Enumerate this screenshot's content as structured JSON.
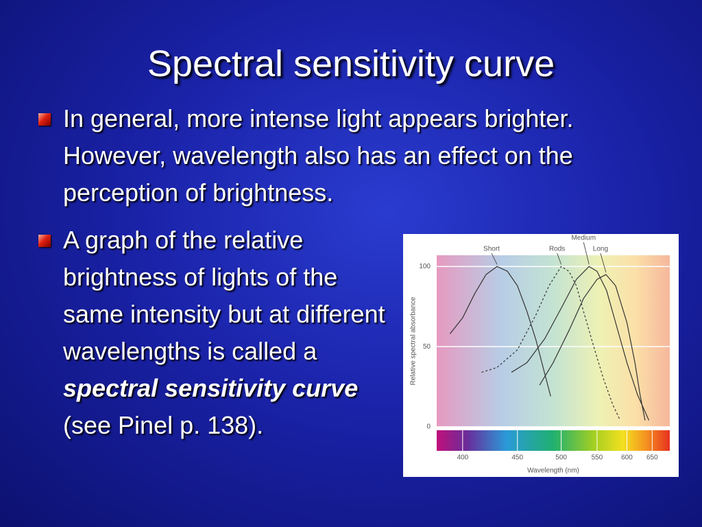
{
  "slide": {
    "title": "Spectral sensitivity curve",
    "bullets": [
      {
        "text": "In general, more intense light appears brighter.  However, wavelength also has an effect on the perception of brightness."
      },
      {
        "parts": [
          "A graph of the relative brightness of lights of the same intensity but at different wavelengths is called a ",
          "spectral sensitivity curve",
          " (see Pinel p. 138)."
        ]
      }
    ]
  },
  "chart_data": {
    "type": "line",
    "xlabel": "Wavelength (nm)",
    "ylabel": "Relative spectral absorbance",
    "xscale": "reciprocal",
    "xlim": [
      380,
      690
    ],
    "ylim": [
      0,
      107
    ],
    "xticks": [
      400,
      450,
      500,
      550,
      600,
      650
    ],
    "yticks": [
      0,
      50,
      100
    ],
    "grid": true,
    "series": [
      {
        "name": "Short",
        "color": "#333333",
        "dash": false,
        "x": [
          390,
          400,
          410,
          420,
          430,
          440,
          450,
          460,
          470,
          480,
          487
        ],
        "values": [
          58,
          68,
          83,
          95,
          100,
          97,
          88,
          72,
          54,
          33,
          19
        ]
      },
      {
        "name": "Rods",
        "color": "#333333",
        "dash": true,
        "x": [
          416,
          430,
          450,
          470,
          485,
          500,
          510,
          520,
          530,
          545,
          560,
          575,
          588
        ],
        "values": [
          34,
          37,
          48,
          70,
          88,
          100,
          97,
          88,
          72,
          50,
          30,
          14,
          4
        ]
      },
      {
        "name": "Medium",
        "color": "#333333",
        "dash": false,
        "x": [
          444,
          460,
          480,
          500,
          520,
          538,
          550,
          565,
          580,
          600,
          620,
          643
        ],
        "values": [
          34,
          40,
          55,
          74,
          92,
          100,
          97,
          85,
          65,
          40,
          20,
          4
        ]
      },
      {
        "name": "Long",
        "color": "#333333",
        "dash": false,
        "x": [
          474,
          490,
          510,
          530,
          550,
          564,
          580,
          600,
          615,
          625,
          635
        ],
        "values": [
          26,
          40,
          60,
          80,
          92,
          95,
          88,
          65,
          40,
          20,
          4
        ]
      }
    ]
  }
}
